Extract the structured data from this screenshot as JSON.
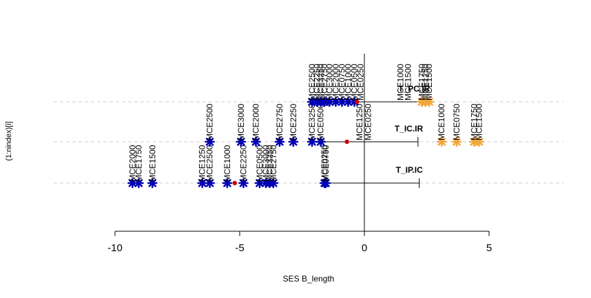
{
  "chart_data": {
    "type": "scatter",
    "title": "",
    "xlabel": "SES B_length",
    "ylabel": "(1:nindex)[i]",
    "xlim": [
      -10,
      5
    ],
    "x_ticks": [
      -10,
      -5,
      0,
      5
    ],
    "x_tick_labels": [
      "-10",
      "-5",
      "0",
      "5"
    ],
    "grid": "horizontal dashed lines at each row",
    "vline_x": 0,
    "colors": {
      "below_ci": "#0000b4",
      "above_ci": "#f0a83c",
      "mean": "#cc0000",
      "grid": "#cccccc",
      "axis": "#000000"
    },
    "series": [
      {
        "name": "T_IP.IC",
        "row": 1,
        "mean": -5.2,
        "ci_low": -1.6,
        "ci_high": 2.2,
        "points": [
          {
            "x": -9.3,
            "label": "MCE2000",
            "flag": "below"
          },
          {
            "x": -9.05,
            "label": "MCE1750",
            "flag": "below"
          },
          {
            "x": -8.5,
            "label": "MCE1500",
            "flag": "below"
          },
          {
            "x": -6.5,
            "label": "MCE1250",
            "flag": "below"
          },
          {
            "x": -6.2,
            "label": "MCE2500",
            "flag": "below"
          },
          {
            "x": -5.5,
            "label": "MCE1000",
            "flag": "below"
          },
          {
            "x": -4.85,
            "label": "MCE2250",
            "flag": "below"
          },
          {
            "x": -4.2,
            "label": "MCE0500",
            "flag": "below"
          },
          {
            "x": -3.95,
            "label": "MCE3000",
            "flag": "below"
          },
          {
            "x": -3.8,
            "label": "MCE3250",
            "flag": "below"
          },
          {
            "x": -3.65,
            "label": "MCE2750",
            "flag": "below"
          },
          {
            "x": -1.6,
            "label": "MCE0250",
            "flag": "below"
          },
          {
            "x": -1.55,
            "label": "MCE0750",
            "flag": "below"
          }
        ]
      },
      {
        "name": "T_IC.IR",
        "row": 2,
        "mean": -0.7,
        "ci_low": -1.65,
        "ci_high": 2.15,
        "points": [
          {
            "x": -6.2,
            "label": "MCE2500",
            "flag": "below"
          },
          {
            "x": -4.95,
            "label": "MCE3000",
            "flag": "below"
          },
          {
            "x": -4.35,
            "label": "MCE2000",
            "flag": "below"
          },
          {
            "x": -3.4,
            "label": "MCE2750",
            "flag": "below"
          },
          {
            "x": -2.85,
            "label": "MCE2250",
            "flag": "below"
          },
          {
            "x": -2.1,
            "label": "MCE3250",
            "flag": "below"
          },
          {
            "x": -1.75,
            "label": "MCE0500",
            "flag": "below"
          },
          {
            "x": -0.2,
            "label": "MCE1250",
            "flag": "neutral"
          },
          {
            "x": 0.15,
            "label": "MCE0250",
            "flag": "neutral"
          },
          {
            "x": 3.1,
            "label": "MCE1000",
            "flag": "above"
          },
          {
            "x": 3.7,
            "label": "MCE0750",
            "flag": "above"
          },
          {
            "x": 4.4,
            "label": "MCE1750",
            "flag": "above"
          },
          {
            "x": 4.6,
            "label": "MCE1500",
            "flag": "above"
          }
        ]
      },
      {
        "name": "T_PC.IR",
        "row": 3,
        "mean": -0.3,
        "ci_low": -2.1,
        "ci_high": 2.3,
        "points": [
          {
            "x": -2.1,
            "label": "MCE2500",
            "flag": "below"
          },
          {
            "x": -1.9,
            "label": "MCE2250",
            "flag": "below"
          },
          {
            "x": -1.75,
            "label": "MCE3250",
            "flag": "below"
          },
          {
            "x": -1.6,
            "label": "MCE2750",
            "flag": "below"
          },
          {
            "x": -1.4,
            "label": "MCE3000",
            "flag": "below"
          },
          {
            "x": -1.15,
            "label": "MCE2000",
            "flag": "below"
          },
          {
            "x": -0.9,
            "label": "MCE0750",
            "flag": "below"
          },
          {
            "x": -0.65,
            "label": "MCE1000",
            "flag": "below"
          },
          {
            "x": -0.4,
            "label": "MCE0500",
            "flag": "below"
          },
          {
            "x": -0.15,
            "label": "MCE0250",
            "flag": "neutral"
          },
          {
            "x": 1.45,
            "label": "MCE1000",
            "flag": "neutral"
          },
          {
            "x": 1.75,
            "label": "MCE1500",
            "flag": "neutral"
          },
          {
            "x": 2.3,
            "label": "MCE1750",
            "flag": "above"
          },
          {
            "x": 2.45,
            "label": "MCE1250",
            "flag": "above"
          },
          {
            "x": 2.6,
            "label": "MCE1500",
            "flag": "above"
          }
        ]
      }
    ]
  }
}
